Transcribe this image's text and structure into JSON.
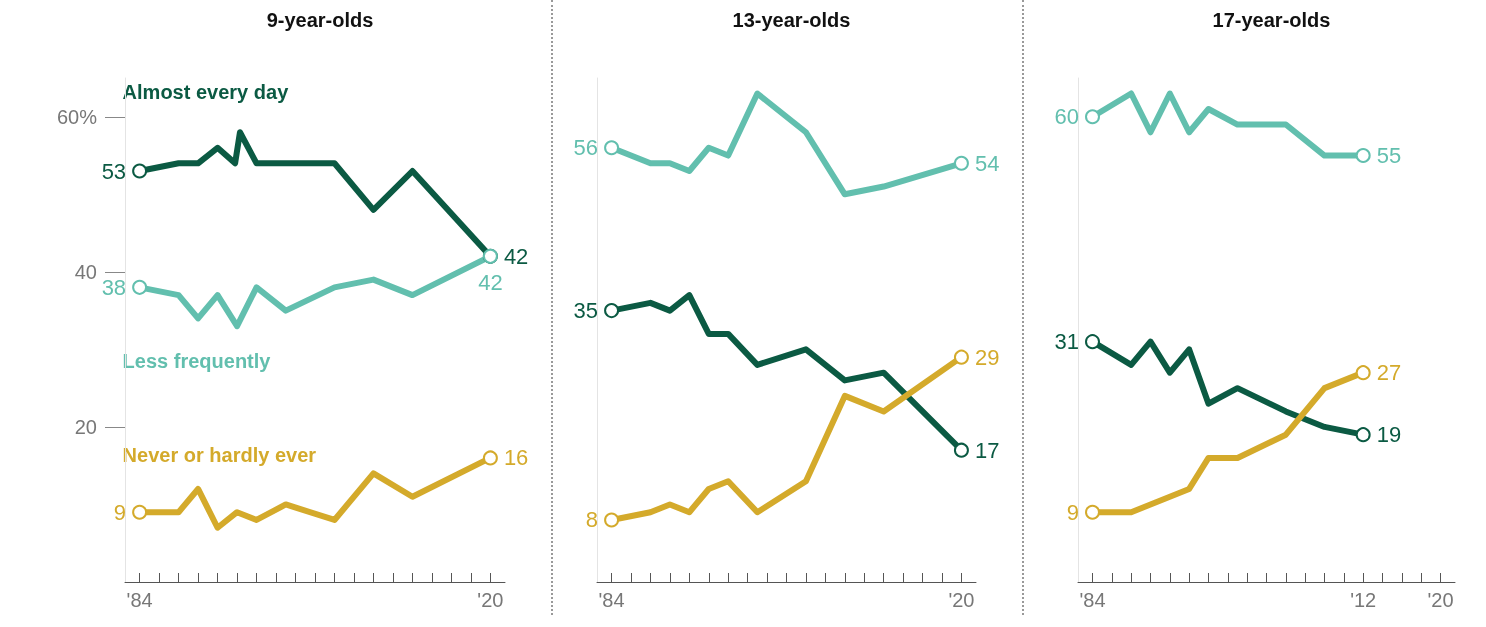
{
  "chart_data": [
    {
      "type": "line",
      "title": "9-year-olds",
      "xlim": [
        1982.5,
        2021.5
      ],
      "ylim": [
        0,
        65
      ],
      "yticks": [
        20,
        40,
        {
          "value": 60,
          "label": "60%"
        }
      ],
      "xticks": [
        {
          "value": 1984,
          "label": "'84"
        },
        {
          "value": 1986,
          "label": null
        },
        {
          "value": 1988,
          "label": null
        },
        {
          "value": 1990,
          "label": null
        },
        {
          "value": 1992,
          "label": null
        },
        {
          "value": 1994,
          "label": null
        },
        {
          "value": 1996,
          "label": null
        },
        {
          "value": 1998,
          "label": null
        },
        {
          "value": 2000,
          "label": null
        },
        {
          "value": 2002,
          "label": null
        },
        {
          "value": 2004,
          "label": null
        },
        {
          "value": 2006,
          "label": null
        },
        {
          "value": 2008,
          "label": null
        },
        {
          "value": 2010,
          "label": null
        },
        {
          "value": 2012,
          "label": null
        },
        {
          "value": 2014,
          "label": null
        },
        {
          "value": 2016,
          "label": null
        },
        {
          "value": 2018,
          "label": null
        },
        {
          "value": 2020,
          "label": "'20"
        }
      ],
      "grid": false,
      "series": [
        {
          "name": "Almost every day",
          "color": "#0b5a43",
          "x": [
            1984,
            1988,
            1990,
            1992,
            1993.8,
            1994.3,
            1996,
            2004,
            2008,
            2012,
            2020
          ],
          "values": [
            53,
            54,
            54,
            56,
            54,
            58,
            54,
            54,
            48,
            53,
            42
          ],
          "value_labels": [
            "53",
            null,
            null,
            null,
            null,
            null,
            null,
            null,
            null,
            null,
            "42"
          ]
        },
        {
          "name": "Less frequently",
          "color": "#62bfae",
          "x": [
            1984,
            1988,
            1990,
            1992,
            1994,
            1996,
            1999,
            2004,
            2008,
            2012,
            2020
          ],
          "values": [
            38,
            37,
            34,
            37,
            33,
            38,
            35,
            38,
            39,
            37,
            42
          ],
          "value_labels": [
            "38",
            null,
            null,
            null,
            null,
            null,
            null,
            null,
            null,
            null,
            "42"
          ]
        },
        {
          "name": "Never or hardly ever",
          "color": "#d4aa2b",
          "x": [
            1984,
            1988,
            1990,
            1992,
            1994,
            1996,
            1999,
            2004,
            2008,
            2012,
            2020
          ],
          "values": [
            9,
            9,
            12,
            7,
            9,
            8,
            10,
            8,
            14,
            11,
            16
          ],
          "value_labels": [
            "9",
            null,
            null,
            null,
            null,
            null,
            null,
            null,
            null,
            null,
            "16"
          ]
        }
      ]
    },
    {
      "type": "line",
      "title": "13-year-olds",
      "xlim": [
        1982.5,
        2021.5
      ],
      "ylim": [
        0,
        65
      ],
      "tick_labels": "x",
      "xticks": [
        {
          "value": 1984,
          "label": "'84"
        },
        {
          "value": 1986,
          "label": null
        },
        {
          "value": 1988,
          "label": null
        },
        {
          "value": 1990,
          "label": null
        },
        {
          "value": 1992,
          "label": null
        },
        {
          "value": 1994,
          "label": null
        },
        {
          "value": 1996,
          "label": null
        },
        {
          "value": 1998,
          "label": null
        },
        {
          "value": 2000,
          "label": null
        },
        {
          "value": 2002,
          "label": null
        },
        {
          "value": 2004,
          "label": null
        },
        {
          "value": 2006,
          "label": null
        },
        {
          "value": 2008,
          "label": null
        },
        {
          "value": 2010,
          "label": null
        },
        {
          "value": 2012,
          "label": null
        },
        {
          "value": 2014,
          "label": null
        },
        {
          "value": 2016,
          "label": null
        },
        {
          "value": 2018,
          "label": null
        },
        {
          "value": 2020,
          "label": "'20"
        }
      ],
      "grid": false,
      "series": [
        {
          "color": "#62bfae",
          "x": [
            1984,
            1988,
            1990,
            1992,
            1994,
            1996,
            1999,
            2004,
            2008,
            2012,
            2020
          ],
          "values": [
            56,
            54,
            54,
            53,
            56,
            55,
            63,
            58,
            50,
            51,
            54
          ],
          "value_labels": [
            "56",
            null,
            null,
            null,
            null,
            null,
            null,
            null,
            null,
            null,
            "54"
          ]
        },
        {
          "color": "#0b5a43",
          "x": [
            1984,
            1988,
            1990,
            1992,
            1994,
            1996,
            1999,
            2004,
            2008,
            2012,
            2020
          ],
          "values": [
            35,
            36,
            35,
            37,
            32,
            32,
            28,
            30,
            26,
            27,
            17
          ],
          "value_labels": [
            "35",
            null,
            null,
            null,
            null,
            null,
            null,
            null,
            null,
            null,
            "17"
          ]
        },
        {
          "color": "#d4aa2b",
          "x": [
            1984,
            1988,
            1990,
            1992,
            1994,
            1996,
            1999,
            2004,
            2008,
            2012,
            2020
          ],
          "values": [
            8,
            9,
            10,
            9,
            12,
            13,
            9,
            13,
            24,
            22,
            29
          ],
          "value_labels": [
            "8",
            null,
            null,
            null,
            null,
            null,
            null,
            null,
            null,
            null,
            "29"
          ]
        }
      ]
    },
    {
      "type": "line",
      "title": "17-year-olds",
      "xlim": [
        1982.5,
        2021.5
      ],
      "ylim": [
        0,
        65
      ],
      "tick_labels": "x",
      "xticks": [
        {
          "value": 1984,
          "label": "'84"
        },
        {
          "value": 1986,
          "label": null
        },
        {
          "value": 1988,
          "label": null
        },
        {
          "value": 1990,
          "label": null
        },
        {
          "value": 1992,
          "label": null
        },
        {
          "value": 1994,
          "label": null
        },
        {
          "value": 1996,
          "label": null
        },
        {
          "value": 1998,
          "label": null
        },
        {
          "value": 2000,
          "label": null
        },
        {
          "value": 2002,
          "label": null
        },
        {
          "value": 2004,
          "label": null
        },
        {
          "value": 2006,
          "label": null
        },
        {
          "value": 2008,
          "label": null
        },
        {
          "value": 2010,
          "label": null
        },
        {
          "value": 2012,
          "label": "'12"
        },
        {
          "value": 2014,
          "label": null
        },
        {
          "value": 2016,
          "label": null
        },
        {
          "value": 2018,
          "label": null
        },
        {
          "value": 2020,
          "label": "'20"
        }
      ],
      "grid": false,
      "series": [
        {
          "color": "#62bfae",
          "x": [
            1984,
            1988,
            1990,
            1992,
            1994,
            1996,
            1999,
            2004,
            2008,
            2012
          ],
          "values": [
            60,
            63,
            58,
            63,
            58,
            61,
            59,
            59,
            55,
            55
          ],
          "value_labels": [
            "60",
            null,
            null,
            null,
            null,
            null,
            null,
            null,
            null,
            "55"
          ]
        },
        {
          "color": "#0b5a43",
          "x": [
            1984,
            1988,
            1990,
            1992,
            1994,
            1996,
            1999,
            2004,
            2008,
            2012
          ],
          "values": [
            31,
            28,
            31,
            27,
            30,
            23,
            25,
            22,
            20,
            19
          ],
          "value_labels": [
            "31",
            null,
            null,
            null,
            null,
            null,
            null,
            null,
            null,
            "19"
          ]
        },
        {
          "color": "#d4aa2b",
          "x": [
            1984,
            1988,
            1990,
            1992,
            1994,
            1996,
            1999,
            2004,
            2008,
            2012
          ],
          "values": [
            9,
            9,
            10,
            11,
            12,
            16,
            16,
            19,
            25,
            27
          ],
          "value_labels": [
            "9",
            null,
            null,
            null,
            null,
            null,
            null,
            null,
            null,
            "27"
          ]
        }
      ]
    }
  ]
}
